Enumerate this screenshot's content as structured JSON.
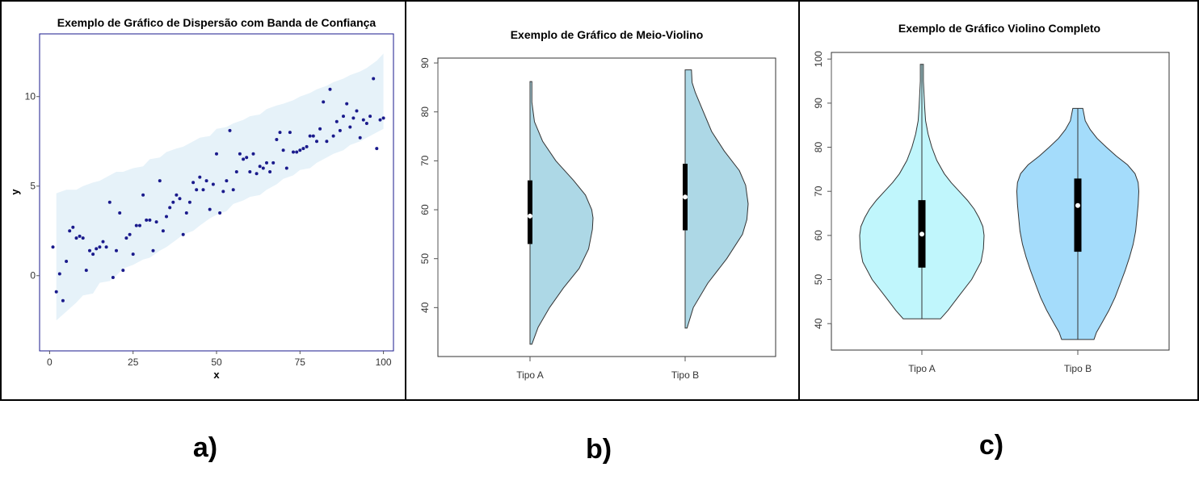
{
  "chart_data": [
    {
      "panel_label": "a)",
      "type": "scatter",
      "title": "Exemplo de Gráfico de Dispersão com Banda de Confiança",
      "xlabel": "x",
      "ylabel": "y",
      "xlim": [
        -3,
        103
      ],
      "ylim": [
        -4.2,
        13.5
      ],
      "xticks": [
        0,
        25,
        50,
        75,
        100
      ],
      "yticks": [
        0,
        5,
        10
      ],
      "point_color": "#1a1a8c",
      "band_color": "#e6f2f9",
      "frame_color": "#1a1a8c",
      "points": {
        "x": [
          1,
          2,
          3,
          4,
          5,
          6,
          7,
          8,
          9,
          10,
          11,
          12,
          13,
          14,
          15,
          16,
          17,
          18,
          19,
          20,
          21,
          22,
          23,
          24,
          25,
          26,
          27,
          28,
          29,
          30,
          31,
          32,
          33,
          34,
          35,
          36,
          37,
          38,
          39,
          40,
          41,
          42,
          43,
          44,
          45,
          46,
          47,
          48,
          49,
          50,
          51,
          52,
          53,
          54,
          55,
          56,
          57,
          58,
          59,
          60,
          61,
          62,
          63,
          64,
          65,
          66,
          67,
          68,
          69,
          70,
          71,
          72,
          73,
          74,
          75,
          76,
          77,
          78,
          79,
          80,
          81,
          82,
          83,
          84,
          85,
          86,
          87,
          88,
          89,
          90,
          91,
          92,
          93,
          94,
          95,
          96,
          97,
          98,
          99,
          100
        ],
        "y": [
          1.6,
          -0.9,
          0.1,
          -1.4,
          0.8,
          2.5,
          2.7,
          2.1,
          2.2,
          2.1,
          0.3,
          1.4,
          1.2,
          1.5,
          1.6,
          1.9,
          1.6,
          4.1,
          -0.1,
          1.4,
          3.5,
          0.3,
          2.1,
          2.3,
          1.2,
          2.8,
          2.8,
          4.5,
          3.1,
          3.1,
          1.4,
          3.0,
          5.3,
          2.5,
          3.3,
          3.8,
          4.1,
          4.5,
          4.3,
          2.3,
          3.5,
          4.1,
          5.2,
          4.8,
          5.5,
          4.8,
          5.3,
          3.7,
          5.1,
          6.8,
          3.5,
          4.7,
          5.3,
          8.1,
          4.8,
          5.8,
          6.8,
          6.5,
          6.6,
          5.8,
          6.8,
          5.7,
          6.1,
          6.0,
          6.3,
          5.8,
          6.3,
          7.6,
          8.0,
          7.0,
          6.0,
          8.0,
          6.9,
          6.9,
          7.0,
          7.1,
          7.2,
          7.8,
          7.8,
          7.5,
          8.2,
          9.7,
          7.5,
          10.4,
          7.8,
          8.6,
          8.1,
          8.9,
          9.6,
          8.3,
          8.8,
          9.2,
          7.7,
          8.7,
          8.5,
          8.9,
          11.0,
          7.1,
          8.7,
          8.8
        ]
      },
      "band": {
        "x": [
          2,
          5,
          8,
          10,
          13,
          15,
          18,
          20,
          22,
          25,
          28,
          30,
          33,
          35,
          38,
          40,
          43,
          45,
          48,
          50,
          53,
          55,
          58,
          60,
          63,
          65,
          68,
          70,
          73,
          75,
          78,
          80,
          83,
          85,
          88,
          90,
          93,
          95,
          98,
          100
        ],
        "lower": [
          -2.5,
          -2.0,
          -1.5,
          -1.1,
          -1.0,
          -0.4,
          -0.3,
          0.0,
          0.4,
          0.6,
          0.9,
          1.0,
          1.4,
          1.6,
          2.0,
          2.3,
          2.5,
          2.8,
          3.2,
          3.4,
          3.6,
          4.0,
          4.2,
          4.4,
          4.5,
          4.8,
          5.1,
          5.4,
          5.6,
          5.9,
          6.0,
          6.3,
          6.6,
          6.8,
          7.0,
          7.3,
          7.5,
          7.7,
          8.0,
          8.2
        ],
        "upper": [
          4.6,
          4.8,
          4.8,
          5.0,
          5.2,
          5.3,
          5.6,
          5.8,
          5.8,
          6.0,
          6.1,
          6.5,
          6.6,
          6.9,
          7.1,
          7.2,
          7.5,
          7.7,
          7.8,
          8.2,
          8.3,
          8.5,
          8.7,
          8.9,
          9.0,
          9.3,
          9.5,
          9.6,
          9.8,
          10.0,
          10.2,
          10.4,
          10.6,
          10.8,
          11.0,
          11.2,
          11.4,
          11.6,
          12.0,
          12.4
        ]
      }
    },
    {
      "panel_label": "b)",
      "type": "violin",
      "title": "Exemplo de Gráfico de Meio-Violino",
      "categories": [
        "Tipo A",
        "Tipo B"
      ],
      "ylim": [
        30,
        91
      ],
      "yticks": [
        40,
        50,
        60,
        70,
        80,
        90
      ],
      "fill_color": "#add8e6",
      "series": [
        {
          "min": 32.5,
          "max": 86.2,
          "q1": 53.0,
          "median": 58.7,
          "q3": 66.0,
          "density_y": [
            32.5,
            36,
            40,
            44,
            48,
            52,
            56,
            58.3,
            60,
            63,
            66,
            70,
            74,
            78,
            82,
            86.2
          ],
          "density_w": [
            0.03,
            0.13,
            0.31,
            0.53,
            0.78,
            0.93,
            0.99,
            1.0,
            0.98,
            0.88,
            0.69,
            0.41,
            0.2,
            0.07,
            0.03,
            0.03
          ]
        },
        {
          "min": 35.8,
          "max": 88.6,
          "q1": 55.8,
          "median": 62.6,
          "q3": 69.4,
          "density_y": [
            35.8,
            40,
            45,
            50,
            55,
            58,
            61.2,
            65,
            68,
            72,
            76,
            80,
            84,
            86,
            88.6
          ],
          "density_w": [
            0.03,
            0.13,
            0.36,
            0.66,
            0.91,
            0.98,
            1.0,
            0.96,
            0.86,
            0.62,
            0.42,
            0.29,
            0.16,
            0.11,
            0.1
          ]
        }
      ]
    },
    {
      "panel_label": "c)",
      "type": "violin",
      "title": "Exemplo de Gráfico Violino Completo",
      "categories": [
        "Tipo A",
        "Tipo B"
      ],
      "ylim": [
        34,
        101.5
      ],
      "yticks": [
        40,
        50,
        60,
        70,
        80,
        90,
        100
      ],
      "series": [
        {
          "fill_color": "#c0f6fc",
          "min": 41.1,
          "max": 98.8,
          "q1": 52.7,
          "median": 60.3,
          "q3": 68.0,
          "density_y": [
            41.1,
            43,
            46,
            50,
            54,
            57,
            60,
            62,
            64,
            66,
            68,
            70,
            72,
            74,
            77,
            80,
            83,
            86,
            89,
            92,
            95,
            98.8
          ],
          "density_w": [
            0.3,
            0.42,
            0.58,
            0.8,
            0.95,
            0.99,
            1.0,
            0.98,
            0.92,
            0.84,
            0.73,
            0.6,
            0.47,
            0.36,
            0.24,
            0.16,
            0.1,
            0.06,
            0.045,
            0.035,
            0.025,
            0.025
          ]
        },
        {
          "fill_color": "#a4dcfb",
          "min": 36.4,
          "max": 88.8,
          "q1": 56.3,
          "median": 66.8,
          "q3": 72.9,
          "density_y": [
            36.4,
            38,
            40,
            43,
            46,
            49,
            52,
            55,
            58,
            61,
            64,
            67,
            70,
            72,
            74,
            76,
            78,
            80,
            82,
            84,
            86,
            88.8
          ],
          "density_w": [
            0.26,
            0.3,
            0.38,
            0.5,
            0.6,
            0.68,
            0.76,
            0.83,
            0.89,
            0.93,
            0.95,
            0.97,
            0.98,
            0.97,
            0.92,
            0.8,
            0.62,
            0.46,
            0.31,
            0.2,
            0.12,
            0.08
          ]
        }
      ]
    }
  ]
}
